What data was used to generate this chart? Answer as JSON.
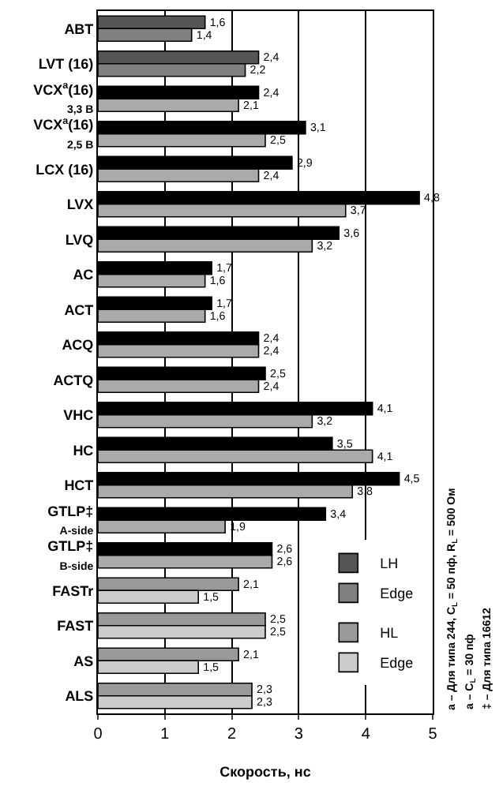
{
  "chart_data": {
    "type": "bar",
    "orientation": "horizontal",
    "xlabel": "Скорость, нс",
    "categories": [
      "ABT",
      "LVT (16)",
      "VCX$^{а}$(16)\n3,3 В",
      "VCX$^{а}$(16)\n2,5 В",
      "LCX (16)",
      "LVX",
      "LVQ",
      "AC",
      "ACT",
      "ACQ",
      "ACTQ",
      "VHC",
      "HC",
      "HCT",
      "GTLP‡\nA-side",
      "GTLP‡\nB-side",
      "FASTr",
      "FAST",
      "AS",
      "ALS"
    ],
    "series": [
      {
        "name": "LH",
        "color": "#000000",
        "colors": [
          "#555555",
          "#555555",
          "#000000",
          "#000000",
          "#000000",
          "#000000",
          "#000000",
          "#000000",
          "#000000",
          "#000000",
          "#000000",
          "#000000",
          "#000000",
          "#000000",
          "#000000",
          "#000000",
          null,
          null,
          null,
          null
        ],
        "values": [
          1.6,
          2.4,
          2.4,
          3.1,
          2.9,
          4.8,
          3.6,
          1.7,
          1.7,
          2.4,
          2.5,
          4.1,
          3.5,
          4.5,
          3.4,
          2.6,
          null,
          null,
          null,
          null
        ],
        "value_labels": [
          "1,6",
          "2,4",
          "2,4",
          "3,1",
          "2,9",
          "4,8",
          "3,6",
          "1,7",
          "1,7",
          "2,4",
          "2,5",
          "4,1",
          "3,5",
          "4,5",
          "3,4",
          "2,6",
          null,
          null,
          null,
          null
        ]
      },
      {
        "name": "Edge",
        "color": "#aaaaaa",
        "colors": [
          "#808080",
          "#808080",
          "#aaaaaa",
          "#aaaaaa",
          "#aaaaaa",
          "#aaaaaa",
          "#aaaaaa",
          "#aaaaaa",
          "#aaaaaa",
          "#aaaaaa",
          "#aaaaaa",
          "#aaaaaa",
          "#aaaaaa",
          "#aaaaaa",
          "#aaaaaa",
          "#aaaaaa",
          null,
          null,
          null,
          null
        ],
        "values": [
          1.4,
          2.2,
          2.1,
          2.5,
          2.4,
          3.7,
          3.2,
          1.6,
          1.6,
          2.4,
          2.4,
          3.2,
          4.1,
          3.8,
          1.9,
          2.6,
          null,
          null,
          null,
          null
        ],
        "value_labels": [
          "1,4",
          "2,2",
          "2,1",
          "2,5",
          "2,4",
          "3,7",
          "3,2",
          "1,6",
          "1,6",
          "2,4",
          "2,4",
          "3,2",
          "4,1",
          "3,8",
          "1,9",
          "2,6",
          null,
          null,
          null,
          null
        ]
      },
      {
        "name": "HL",
        "color": "#999999",
        "values": [
          null,
          null,
          null,
          null,
          null,
          null,
          null,
          null,
          null,
          null,
          null,
          null,
          null,
          null,
          null,
          null,
          2.1,
          2.5,
          2.1,
          2.3
        ],
        "value_labels": [
          null,
          null,
          null,
          null,
          null,
          null,
          null,
          null,
          null,
          null,
          null,
          null,
          null,
          null,
          null,
          null,
          "2,1",
          "2,5",
          "2,1",
          "2,3"
        ]
      },
      {
        "name": "Edge",
        "color": "#cccccc",
        "values": [
          null,
          null,
          null,
          null,
          null,
          null,
          null,
          null,
          null,
          null,
          null,
          null,
          null,
          null,
          null,
          null,
          1.5,
          2.5,
          1.5,
          2.3
        ],
        "value_labels": [
          null,
          null,
          null,
          null,
          null,
          null,
          null,
          null,
          null,
          null,
          null,
          null,
          null,
          null,
          null,
          null,
          "1,5",
          "2,5",
          "1,5",
          "2,3"
        ]
      }
    ],
    "xlim": [
      0,
      5
    ],
    "xticks": [
      0,
      1,
      2,
      3,
      4,
      5
    ],
    "grid": "x",
    "legend": "bottom right",
    "annotations": [
      "а – Для типа 244, C$_{L}$ = 50 пф, R$_{L}$ = 500 Ом",
      "а – C$_{L}$ = 30 пф",
      "‡ – Для типа 16612"
    ]
  }
}
